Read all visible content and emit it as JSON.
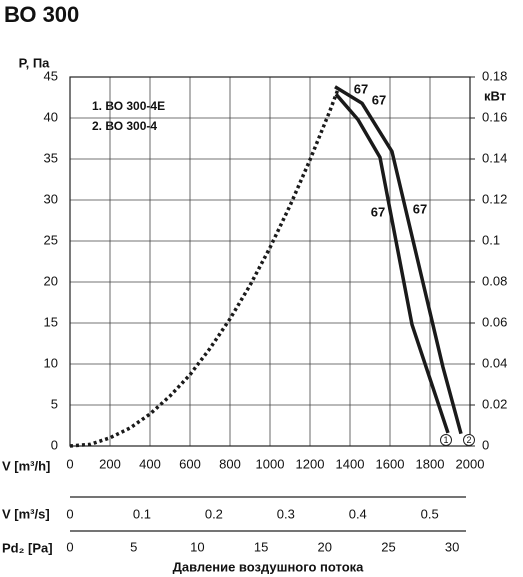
{
  "chart_data": {
    "type": "line",
    "title": "ВО 300",
    "ylabel": "P, Па",
    "y2label": "кВт",
    "xlabel": "V [m³/h]",
    "xlim": [
      0,
      2000
    ],
    "xticks": [
      0,
      200,
      400,
      600,
      800,
      1000,
      1200,
      1400,
      1600,
      1800,
      2000
    ],
    "ylim": [
      0,
      45
    ],
    "yticks": [
      0,
      5,
      10,
      15,
      20,
      25,
      30,
      35,
      40,
      45
    ],
    "y2lim": [
      0,
      0.18
    ],
    "y2ticks": [
      0,
      0.02,
      0.04,
      0.06,
      0.08,
      0.1,
      0.12,
      0.14,
      0.16,
      0.18
    ],
    "grid": true,
    "series": [
      {
        "name": "1. ВО 300-4E",
        "color": "#1a1a1a",
        "x": [
          1330,
          1440,
          1550,
          1710,
          1890
        ],
        "values": [
          42.9,
          39.8,
          35.2,
          14.8,
          1.6
        ]
      },
      {
        "name": "2. ВО 300-4",
        "color": "#1a1a1a",
        "x": [
          1325,
          1460,
          1610,
          1865,
          1955
        ],
        "values": [
          43.8,
          41.8,
          35.9,
          9.6,
          1.5
        ]
      }
    ],
    "end_labels": [
      "1",
      "2"
    ],
    "system_curve": {
      "color": "#1a1a1a",
      "x": [
        0,
        100,
        200,
        300,
        400,
        500,
        600,
        700,
        800,
        900,
        1000,
        1100,
        1200,
        1300,
        1340
      ],
      "values": [
        0,
        0.2,
        1,
        2.2,
        3.9,
        6.1,
        8.7,
        11.9,
        15.5,
        19.6,
        24.2,
        29.3,
        34.9,
        40.9,
        43.5
      ]
    },
    "annotations": [
      "67",
      "67",
      "67",
      "67"
    ],
    "secondary_axes": [
      {
        "label": "V [m³/s]",
        "xlim": [
          0,
          0.556
        ],
        "xticks": [
          0,
          0.1,
          0.2,
          0.3,
          0.4,
          0.5
        ]
      },
      {
        "label": "Pd₂ [Pa]",
        "xlim": [
          0,
          31.4
        ],
        "xticks": [
          0,
          5,
          10,
          15,
          20,
          25,
          30
        ]
      }
    ],
    "footer": "Давление воздушного потока"
  }
}
